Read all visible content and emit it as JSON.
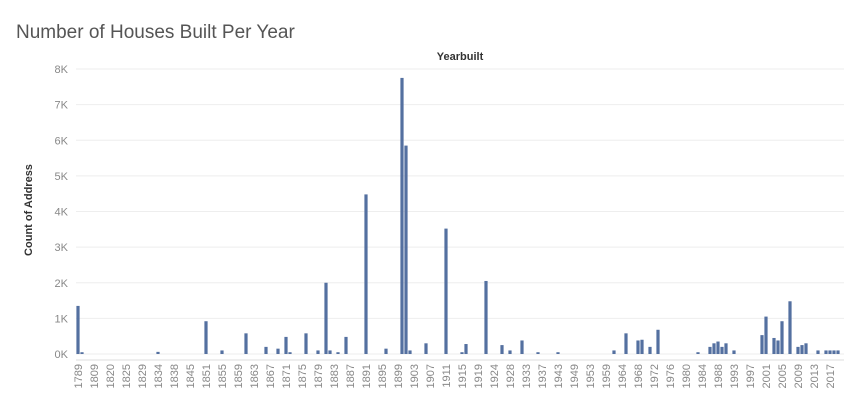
{
  "chart_data": {
    "type": "bar",
    "title": "Number of Houses Built Per Year",
    "x_label": "Yearbuilt",
    "y_label": "Count of Address",
    "categories": [
      "1789",
      null,
      null,
      null,
      "1809",
      null,
      null,
      null,
      "1820",
      null,
      null,
      null,
      "1825",
      null,
      null,
      null,
      "1829",
      null,
      null,
      null,
      "1834",
      null,
      null,
      null,
      "1838",
      null,
      null,
      null,
      "1845",
      null,
      null,
      null,
      "1851",
      null,
      null,
      null,
      "1855",
      null,
      null,
      null,
      "1859",
      null,
      null,
      null,
      "1863",
      null,
      null,
      null,
      "1867",
      null,
      null,
      null,
      "1871",
      null,
      null,
      null,
      "1875",
      null,
      null,
      null,
      "1879",
      null,
      null,
      null,
      "1883",
      null,
      null,
      null,
      "1887",
      null,
      null,
      null,
      "1891",
      null,
      null,
      null,
      "1895",
      null,
      null,
      null,
      "1899",
      null,
      null,
      null,
      "1903",
      null,
      null,
      null,
      "1907",
      null,
      null,
      null,
      "1911",
      null,
      null,
      null,
      "1915",
      null,
      null,
      null,
      "1919",
      null,
      null,
      null,
      "1924",
      null,
      null,
      null,
      "1928",
      null,
      null,
      null,
      "1933",
      null,
      null,
      null,
      "1937",
      null,
      null,
      null,
      "1943",
      null,
      null,
      null,
      "1949",
      null,
      null,
      null,
      "1953",
      null,
      null,
      null,
      "1959",
      null,
      null,
      null,
      "1964",
      null,
      null,
      null,
      "1968",
      null,
      null,
      null,
      "1972",
      null,
      null,
      null,
      "1976",
      null,
      null,
      null,
      "1980",
      null,
      null,
      null,
      "1984",
      null,
      null,
      null,
      "1988",
      null,
      null,
      null,
      "1993",
      null,
      null,
      null,
      "1997",
      null,
      null,
      null,
      "2001",
      null,
      null,
      null,
      "2005",
      null,
      null,
      null,
      "2009",
      null,
      null,
      null,
      "2013",
      null,
      null,
      null,
      "2017",
      null,
      null,
      null
    ],
    "values": [
      1350,
      50,
      0,
      0,
      0,
      0,
      0,
      0,
      0,
      0,
      0,
      0,
      0,
      0,
      0,
      0,
      0,
      0,
      0,
      0,
      60,
      0,
      0,
      0,
      0,
      0,
      0,
      0,
      0,
      0,
      0,
      0,
      920,
      0,
      0,
      0,
      100,
      0,
      0,
      0,
      0,
      0,
      580,
      0,
      0,
      0,
      0,
      200,
      0,
      0,
      150,
      0,
      480,
      50,
      0,
      0,
      0,
      580,
      0,
      0,
      100,
      0,
      2000,
      100,
      0,
      50,
      0,
      480,
      0,
      0,
      0,
      0,
      4480,
      0,
      0,
      0,
      0,
      150,
      0,
      0,
      0,
      7750,
      5850,
      100,
      0,
      0,
      0,
      300,
      0,
      0,
      0,
      0,
      3520,
      0,
      0,
      0,
      50,
      280,
      0,
      0,
      0,
      0,
      2050,
      0,
      0,
      0,
      250,
      0,
      100,
      0,
      0,
      380,
      0,
      0,
      0,
      50,
      0,
      0,
      0,
      0,
      50,
      0,
      0,
      0,
      0,
      0,
      0,
      0,
      0,
      0,
      0,
      0,
      0,
      0,
      100,
      0,
      0,
      580,
      0,
      0,
      380,
      400,
      0,
      200,
      0,
      680,
      0,
      0,
      0,
      0,
      0,
      0,
      0,
      0,
      0,
      50,
      0,
      0,
      200,
      300,
      350,
      200,
      300,
      0,
      100,
      0,
      0,
      0,
      0,
      0,
      0,
      530,
      1050,
      0,
      450,
      380,
      920,
      0,
      1480,
      0,
      200,
      250,
      300,
      0,
      0,
      100,
      0,
      100,
      100,
      100,
      100,
      0
    ],
    "color": "#5470a0",
    "ylim": [
      0,
      8000
    ],
    "yticks": [
      {
        "value": 0,
        "label": "0K"
      },
      {
        "value": 1000,
        "label": "1K"
      },
      {
        "value": 2000,
        "label": "2K"
      },
      {
        "value": 3000,
        "label": "3K"
      },
      {
        "value": 4000,
        "label": "4K"
      },
      {
        "value": 5000,
        "label": "5K"
      },
      {
        "value": 6000,
        "label": "6K"
      },
      {
        "value": 7000,
        "label": "7K"
      },
      {
        "value": 8000,
        "label": "8K"
      }
    ],
    "grid": true
  }
}
